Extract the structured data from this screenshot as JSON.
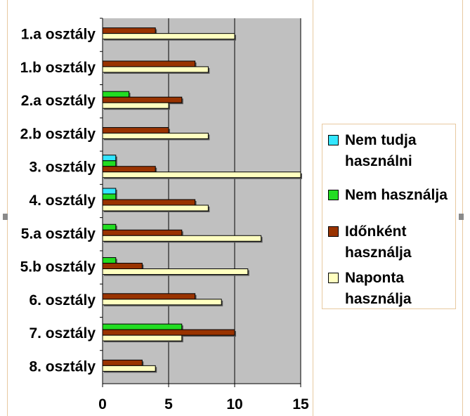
{
  "chart_data": {
    "type": "bar",
    "orientation": "horizontal",
    "categories": [
      "1.a osztály",
      "1.b osztály",
      "2.a osztály",
      "2.b osztály",
      "3. osztály",
      "4. osztály",
      "5.a osztály",
      "5.b osztály",
      "6. osztály",
      "7. osztály",
      "8. osztály"
    ],
    "series": [
      {
        "name": "Nem tudja használni",
        "color": "#33e6ff",
        "values": [
          0,
          0,
          0,
          0,
          1,
          1,
          0,
          0,
          0,
          0,
          0
        ]
      },
      {
        "name": "Nem használja",
        "color": "#22dd22",
        "values": [
          0,
          0,
          2,
          0,
          1,
          1,
          1,
          1,
          0,
          6,
          0
        ]
      },
      {
        "name": "Időnként használja",
        "color": "#993300",
        "values": [
          4,
          7,
          6,
          5,
          4,
          7,
          6,
          3,
          7,
          10,
          3
        ]
      },
      {
        "name": "Naponta használja",
        "color": "#ffffc0",
        "values": [
          10,
          8,
          5,
          8,
          15,
          8,
          12,
          11,
          9,
          6,
          4
        ]
      }
    ],
    "xlim": [
      0,
      15
    ],
    "xticks": [
      0,
      5,
      10,
      15
    ],
    "plot_background": "#c0c0c0",
    "grid": true,
    "legend_position": "right"
  }
}
